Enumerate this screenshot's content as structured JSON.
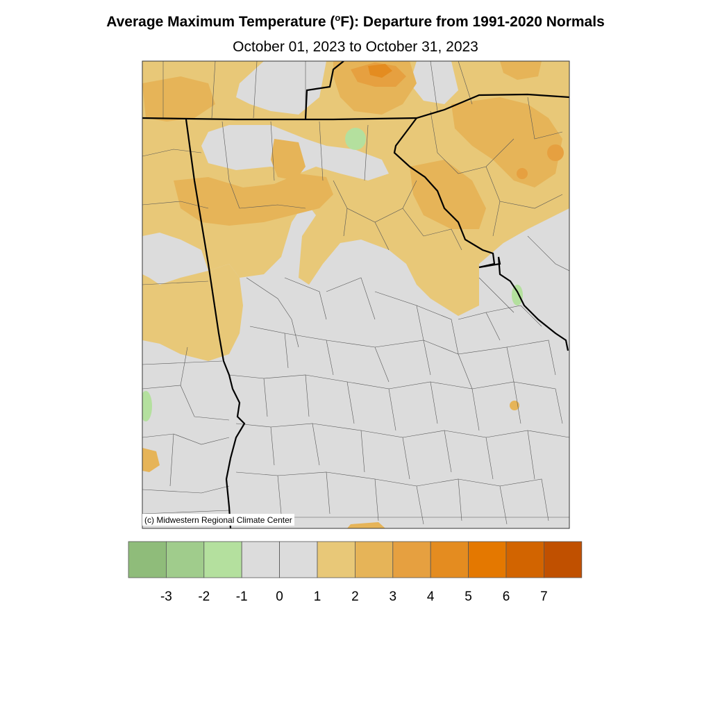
{
  "title": {
    "prefix": "Average Maximum Temperature (",
    "degree": "o",
    "suffix": "F): Departure from 1991-2020 Normals"
  },
  "subtitle": "October 01, 2023 to October 31, 2023",
  "credit": "(c) Midwestern Regional Climate Center",
  "legend": {
    "colors": [
      "#8fbc7a",
      "#a0cc8c",
      "#b4e09e",
      "#dcdcdc",
      "#dcdcdc",
      "#e8c878",
      "#e6b458",
      "#e6a040",
      "#e48c20",
      "#e47800",
      "#d26400",
      "#c05000"
    ],
    "labels": [
      "-3",
      "-2",
      "-1",
      "0",
      "1",
      "2",
      "3",
      "4",
      "5",
      "6",
      "7"
    ]
  },
  "map_colors": {
    "neutral": "#dcdcdc",
    "warm1": "#e8c878",
    "warm2": "#e6b458",
    "warm3": "#e6a040",
    "warm4": "#e48c20",
    "cool": "#b4e09e",
    "border": "#000000",
    "county": "#555555"
  }
}
